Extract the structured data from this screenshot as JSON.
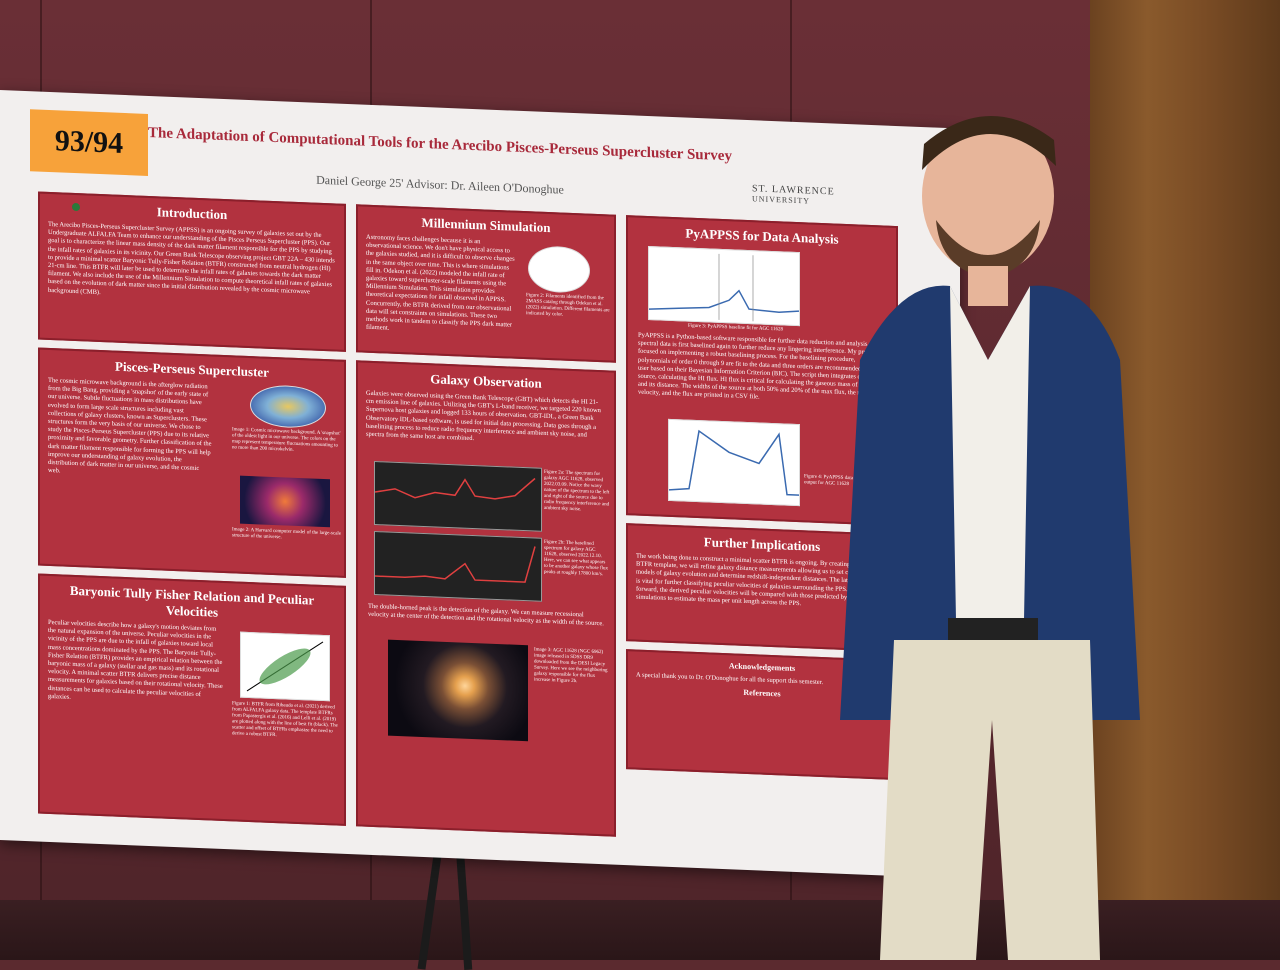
{
  "scene": {
    "tag_label": "93/94"
  },
  "poster": {
    "title": "The Adaptation of Computational Tools for the Arecibo Pisces-Perseus Supercluster Survey",
    "authors": "Daniel George 25'   Advisor: Dr. Aileen O'Donoghue",
    "logo_line1": "ST. LAWRENCE",
    "logo_line2": "UNIVERSITY",
    "sections": {
      "intro": {
        "heading": "Introduction",
        "text": "The Arecibo Pisces-Perseus Supercluster Survey (APPSS) is an ongoing survey of galaxies set out by the Undergraduate ALFALFA Team to enhance our understanding of the Pisces Perseus Supercluster (PPS). Our goal is to characterize the linear mass density of the dark matter filament responsible for the PPS by studying the infall rates of galaxies in its vicinity. Our Green Bank Telescope observing project GBT 22A – 430 intends to provide a minimal scatter Baryonic Tully-Fisher Relation (BTFR) constructed from neutral hydrogen (HI) 21-cm line. This BTFR will later be used to determine the infall rates of galaxies towards the dark matter filament. We also include the use of the Millennium Simulation to compute theoretical infall rates of galaxies based on the evolution of dark matter since the initial distribution revealed by the cosmic microwave background (CMB)."
      },
      "millennium": {
        "heading": "Millennium Simulation",
        "text": "Astronomy faces challenges because it is an observational science. We don't have physical access to the galaxies studied, and it is difficult to observe changes in the same object over time. This is where simulations fill in. Odekon et al. (2022) modeled the infall rate of galaxies toward supercluster-scale filaments using the Millennium Simulation. This simulation provides theoretical expectations for infall observed in APPSS. Concurrently, the BTFR derived from our observational data will set constraints on simulations. These two methods work in tandem to classify the PPS dark matter filament.",
        "caption": "Figure 2: Filaments identified from the 2MASS catalog through Odekon et al. (2022) simulation. Different filaments are indicated by color."
      },
      "pyappss": {
        "heading": "PyAPPSS for Data Analysis",
        "caption1": "Figure 3: PyAPPSS baseline fit for AGC 11628",
        "text": "PyAPPSS is a Python-based software responsible for further data reduction and analysis. The spectral data is first baselined again to further reduce any lingering interference. My project focused on implementing a robust baselining process. For the baselining procedure, polynomials of order 0 through 9 are fit to the data and three orders are recommended to the user based on their Bayesian Information Criterion (BIC). The script then integrates over the source, calculating the HI flux. HI flux is critical for calculating the gaseous mass of a galaxy and its distance. The widths of the source at both 50% and 20% of the max flux, the recessional velocity, and the flux are printed in a CSV file.",
        "caption2": "Figure 4: PyAPPSS data analysis and output for AGC 11628"
      },
      "pisces": {
        "heading": "Pisces-Perseus Supercluster",
        "text": "The cosmic microwave background is the afterglow radiation from the Big Bang, providing a 'snapshot' of the early state of our universe. Subtle fluctuations in mass distributions have evolved to form large scale structures including vast collections of galaxy clusters, known as Superclusters. These structures form the very basis of our universe. We chose to study the Pisces-Perseus Supercluster (PPS) due to its relative proximity and favorable geometry. Further classification of the dark matter filament responsible for forming the PPS will help improve our understanding of galaxy evolution, the distribution of dark matter in our universe, and the cosmic web.",
        "caption1": "Image 1: Cosmic microwave background. A 'snapshot' of the oldest light in our universe. The colors on the map represent temperature fluctuations amounting to no more than 200 microkelvin.",
        "caption2": "Image 2: A Harvard computer model of the large-scale structure of the universe."
      },
      "galaxy": {
        "heading": "Galaxy Observation",
        "text": "Galaxies were observed using the Green Bank Telescope (GBT) which detects the HI 21-cm emission line of galaxies. Utilizing the GBT's L-band receiver, we targeted 220 known Supernova host galaxies and logged 133 hours of observation. GBT-IDL, a Green Bank Observatory IDL-based software, is used for initial data processing. Data goes through a baselining process to reduce radio frequency interference and ambient sky noise, and spectra from the same host are combined.",
        "caption_a": "Figure 2a: The spectrum for galaxy AGC 11628, observed 2022.03.09. Notice the wavy nature of the spectrum to the left and right of the source due to radio frequency interference and ambient sky noise.",
        "caption_b": "Figure 2b: The baselined spectrum for galaxy AGC 11628, observed 2022.12.10. Here, we can see what appears to be another galaxy whose flux peaks at roughly 17800 km/s.",
        "text2": "The double-horned peak is the detection of the galaxy. We can measure recessional velocity at the center of the detection and the rotational velocity as the width of the source.",
        "caption_c": "Image 3: AGC 11628 (NGC 6962) image released in SDSS DR9 downloaded from the DESI Legacy Survey. Here we see the neighboring galaxy responsible for the flux increase in Figure 2b."
      },
      "implications": {
        "heading": "Further Implications",
        "text": "The work being done to construct a minimal scatter BTFR is ongoing. By creating a robust BTFR template, we will refine galaxy distance measurements allowing us to set constraints on models of galaxy evolution and determine redshift-independent distances. The latter application is vital for further classifying peculiar velocities of galaxies surrounding the PPS. Moving forward, the derived peculiar velocities will be compared with those predicted by numerical simulations to estimate the mass per unit length across the PPS."
      },
      "ack": {
        "heading": "Acknowledgements",
        "text": "A special thank you to Dr. O'Donoghue for all the support this semester.",
        "ref_heading": "References"
      },
      "btfr": {
        "heading": "Baryonic Tully Fisher Relation and Peculiar Velocities",
        "text": "Peculiar velocities describe how a galaxy's motion deviates from the natural expansion of the universe. Peculiar velocities in the vicinity of the PPS are due to the infall of galaxies toward local mass concentrations dominated by the PPS. The Baryonic Tully-Fisher Relation (BTFR) provides an empirical relation between the baryonic mass of a galaxy (stellar and gas mass) and its rotational velocity. A minimal scatter BTFR delivers precise distance measurements for galaxies based on their rotational velocity. These distances can be used to calculate the peculiar velocities of galaxies.",
        "caption": "Figure 1: BTFR from Ribaudo et al. (2021) derived from ALFALFA galaxy data. The template BTFRs from Papastergis et al. (2016) and Lelli et al. (2019) are plotted along with the line of best fit (black). The scatter and offset of BTFRs emphasize the need to derive a robust BTFR."
      }
    }
  }
}
